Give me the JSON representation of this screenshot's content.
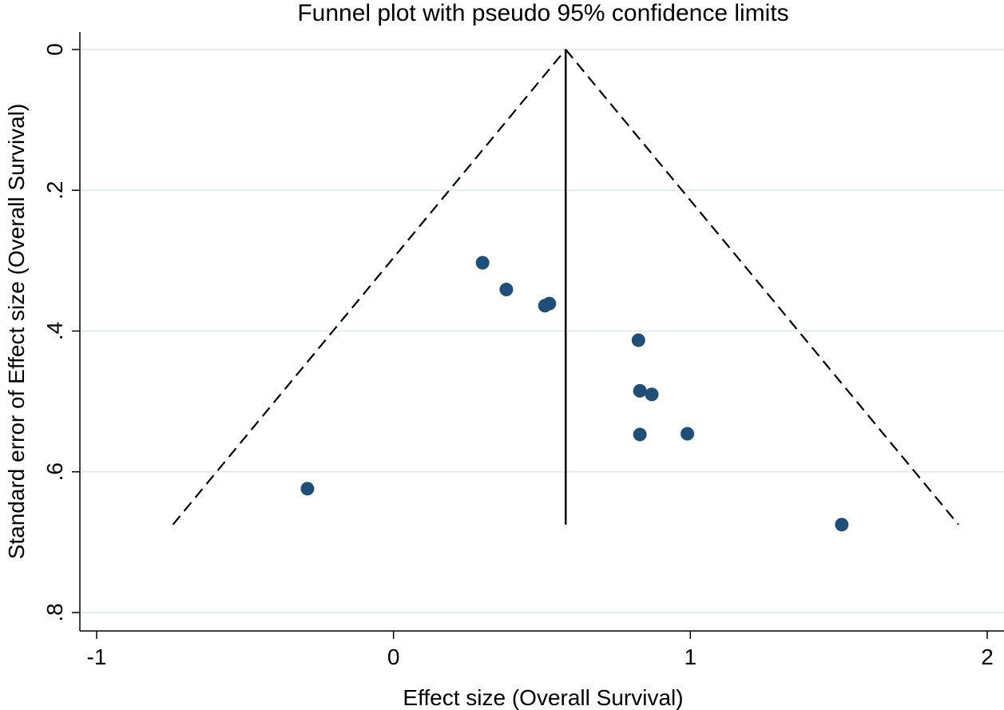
{
  "chart_data": {
    "type": "scatter",
    "title": "Funnel plot with pseudo 95% confidence limits",
    "xlabel": "Effect size (Overall Survival)",
    "ylabel": "Standard error of Effect size (Overall Survival)",
    "xlim": [
      -1,
      2
    ],
    "ylim": [
      0,
      0.8
    ],
    "y_reversed": true,
    "grid": true,
    "xticks": [
      -1,
      0,
      1,
      2
    ],
    "xtick_labels": [
      "-1",
      "0",
      "1",
      "2"
    ],
    "yticks": [
      0,
      0.2,
      0.4,
      0.6,
      0.8
    ],
    "ytick_labels": [
      "0",
      ".2",
      ".4",
      ".6",
      ".8"
    ],
    "pooled_effect": 0.58,
    "funnel_max_se": 0.675,
    "colors": {
      "points": "#1f4e79",
      "grid": "#e3ecec",
      "lines": "#000000"
    },
    "points": [
      {
        "x": 0.3,
        "y": 0.303
      },
      {
        "x": 0.38,
        "y": 0.341
      },
      {
        "x": 0.51,
        "y": 0.364
      },
      {
        "x": 0.525,
        "y": 0.361
      },
      {
        "x": 0.825,
        "y": 0.413
      },
      {
        "x": 0.83,
        "y": 0.485
      },
      {
        "x": 0.87,
        "y": 0.49
      },
      {
        "x": 0.83,
        "y": 0.547
      },
      {
        "x": 0.99,
        "y": 0.546
      },
      {
        "x": -0.29,
        "y": 0.624
      },
      {
        "x": 1.51,
        "y": 0.675
      }
    ]
  }
}
